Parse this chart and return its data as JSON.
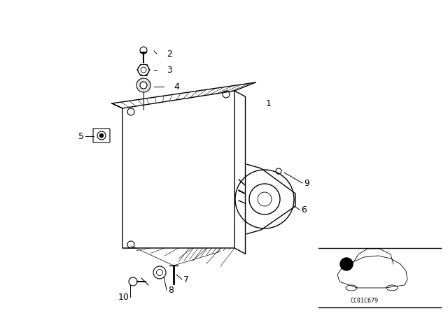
{
  "bg_color": "#ffffff",
  "line_color": "#000000",
  "fig_width": 6.4,
  "fig_height": 4.48,
  "dpi": 100,
  "watermark": "CC01C679"
}
